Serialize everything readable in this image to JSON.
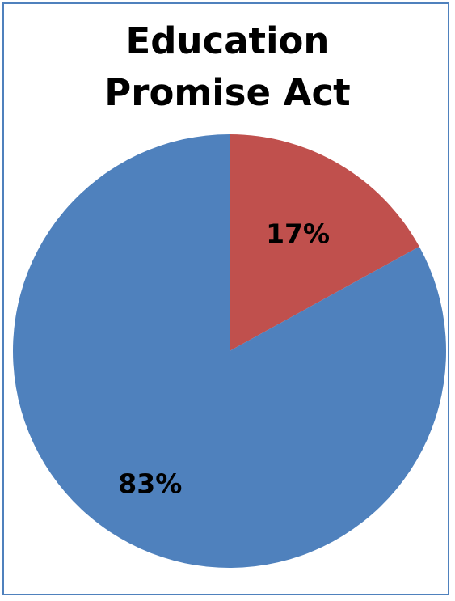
{
  "chart_data": {
    "type": "pie",
    "title_lines": [
      "Education",
      "Promise Act"
    ],
    "slices": [
      {
        "value": 17,
        "label": "17%",
        "color": "#c0504d"
      },
      {
        "value": 83,
        "label": "83%",
        "color": "#4f81bd"
      }
    ],
    "start_angle_deg": 0,
    "direction": "clockwise",
    "border_color": "#4f81bd"
  }
}
